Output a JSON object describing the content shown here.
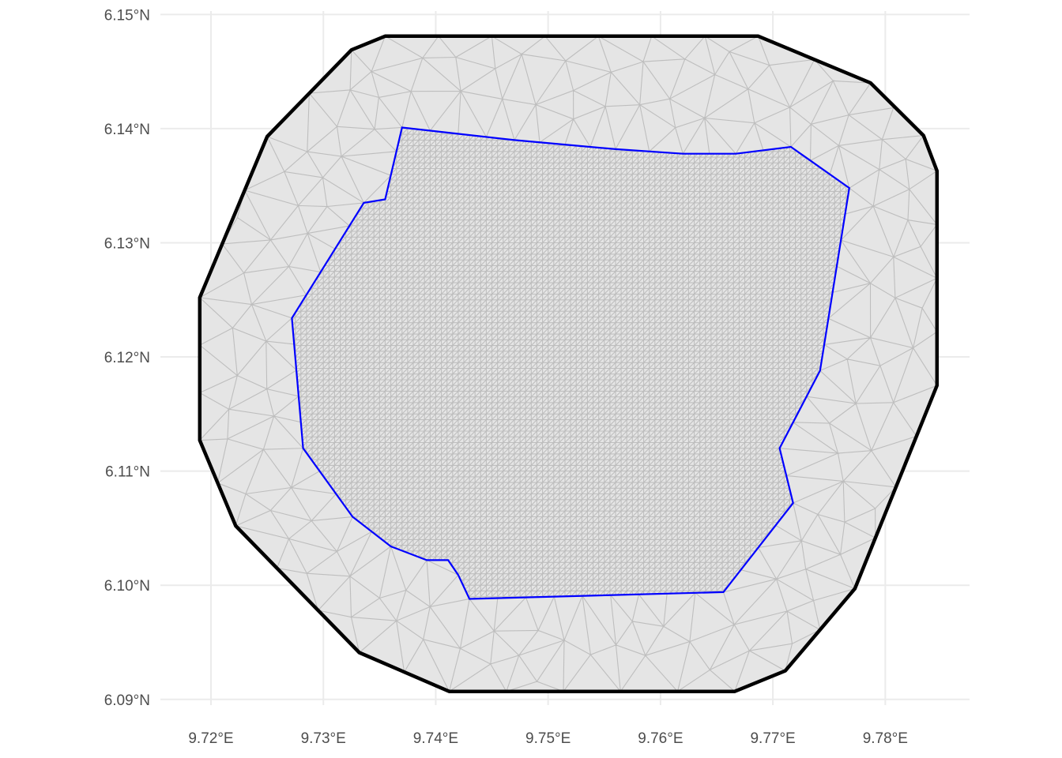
{
  "chart_data": {
    "type": "map",
    "title": "",
    "xlabel": "",
    "ylabel": "",
    "xlim": [
      9.7155,
      9.7875
    ],
    "ylim": [
      6.0895,
      6.1503
    ],
    "grid": true,
    "legend": "none",
    "x_ticks": [
      {
        "value": 9.72,
        "label": "9.72°E"
      },
      {
        "value": 9.73,
        "label": "9.73°E"
      },
      {
        "value": 9.74,
        "label": "9.74°E"
      },
      {
        "value": 9.75,
        "label": "9.75°E"
      },
      {
        "value": 9.76,
        "label": "9.76°E"
      },
      {
        "value": 9.77,
        "label": "9.77°E"
      },
      {
        "value": 9.78,
        "label": "9.78°E"
      }
    ],
    "y_ticks": [
      {
        "value": 6.09,
        "label": "6.09°N"
      },
      {
        "value": 6.1,
        "label": "6.10°N"
      },
      {
        "value": 6.11,
        "label": "6.11°N"
      },
      {
        "value": 6.12,
        "label": "6.12°N"
      },
      {
        "value": 6.13,
        "label": "6.13°N"
      },
      {
        "value": 6.14,
        "label": "6.14°N"
      },
      {
        "value": 6.15,
        "label": "6.15°N"
      }
    ],
    "layers": [
      {
        "name": "mesh-outer-boundary",
        "stroke": "#000000",
        "fill": "#e5e5e5",
        "coords": [
          [
            9.7355,
            6.1481
          ],
          [
            9.7687,
            6.1481
          ],
          [
            9.7787,
            6.144
          ],
          [
            9.7834,
            6.1394
          ],
          [
            9.7846,
            6.1363
          ],
          [
            9.7846,
            6.1175
          ],
          [
            9.7773,
            6.0997
          ],
          [
            9.7711,
            6.0925
          ],
          [
            9.7666,
            6.0907
          ],
          [
            9.7412,
            6.0907
          ],
          [
            9.7332,
            6.0941
          ],
          [
            9.7222,
            6.1052
          ],
          [
            9.719,
            6.1127
          ],
          [
            9.719,
            6.1252
          ],
          [
            9.725,
            6.1393
          ],
          [
            9.7325,
            6.1469
          ]
        ]
      },
      {
        "name": "study-area-boundary",
        "stroke": "#0000ff",
        "fill": "none",
        "coords": [
          [
            9.737,
            6.1401
          ],
          [
            9.747,
            6.139
          ],
          [
            9.756,
            6.1382
          ],
          [
            9.762,
            6.1378
          ],
          [
            9.7667,
            6.1378
          ],
          [
            9.7716,
            6.1384
          ],
          [
            9.7768,
            6.1348
          ],
          [
            9.7742,
            6.1188
          ],
          [
            9.7706,
            6.112
          ],
          [
            9.7718,
            6.1072
          ],
          [
            9.7656,
            6.0994
          ],
          [
            9.743,
            6.0988
          ],
          [
            9.742,
            6.1009
          ],
          [
            9.7411,
            6.1022
          ],
          [
            9.7392,
            6.1022
          ],
          [
            9.736,
            6.1034
          ],
          [
            9.7326,
            6.106
          ],
          [
            9.7282,
            6.112
          ],
          [
            9.7272,
            6.1234
          ],
          [
            9.7336,
            6.1335
          ],
          [
            9.7355,
            6.1338
          ]
        ]
      },
      {
        "name": "triangulation-mesh",
        "stroke": "#bebebe",
        "regular_grid_step": 0.0005
      }
    ]
  }
}
